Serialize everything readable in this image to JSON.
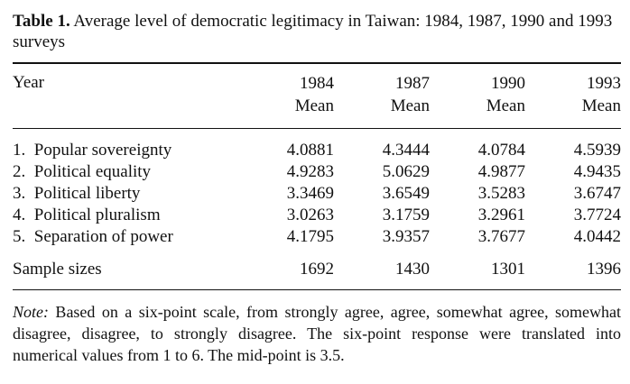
{
  "table": {
    "caption_label": "Table 1.",
    "caption_text": "Average level of democratic legitimacy in Taiwan: 1984, 1987, 1990 and 1993 surveys",
    "header": {
      "year_label": "Year",
      "columns": [
        {
          "year": "1984",
          "stat": "Mean"
        },
        {
          "year": "1987",
          "stat": "Mean"
        },
        {
          "year": "1990",
          "stat": "Mean"
        },
        {
          "year": "1993",
          "stat": "Mean"
        }
      ]
    },
    "rows": [
      {
        "label": "1.  Popular sovereignty",
        "values": [
          "4.0881",
          "4.3444",
          "4.0784",
          "4.5939"
        ]
      },
      {
        "label": "2.  Political equality",
        "values": [
          "4.9283",
          "5.0629",
          "4.9877",
          "4.9435"
        ]
      },
      {
        "label": "3.  Political liberty",
        "values": [
          "3.3469",
          "3.6549",
          "3.5283",
          "3.6747"
        ]
      },
      {
        "label": "4.  Political pluralism",
        "values": [
          "3.0263",
          "3.1759",
          "3.2961",
          "3.7724"
        ]
      },
      {
        "label": "5.  Separation of power",
        "values": [
          "4.1795",
          "3.9357",
          "3.7677",
          "4.0442"
        ]
      }
    ],
    "sample": {
      "label": "Sample sizes",
      "values": [
        "1692",
        "1430",
        "1301",
        "1396"
      ]
    },
    "note_label": "Note:",
    "note_text": " Based on a six-point scale, from strongly agree, agree, somewhat agree, somewhat disagree, disagree, to strongly disagree. The six-point response were translated into numerical values from 1 to 6. The mid-point is 3.5."
  }
}
